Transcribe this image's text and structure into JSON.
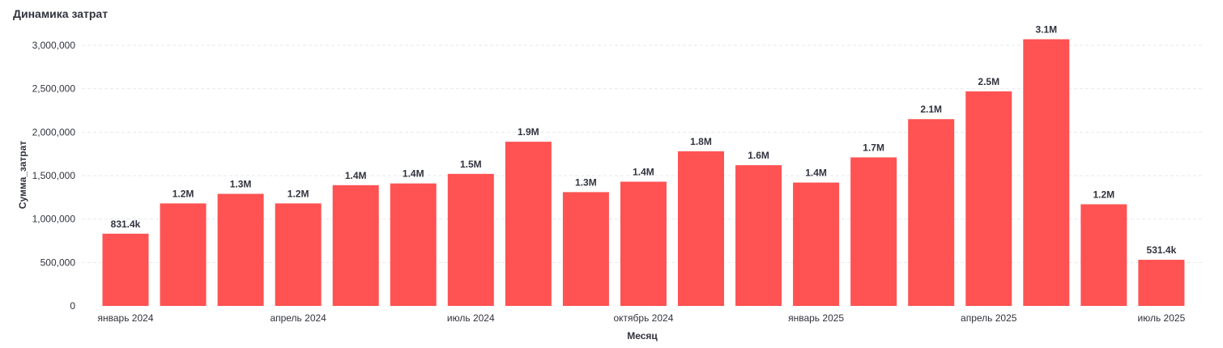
{
  "chart_data": {
    "type": "bar",
    "title": "Динамика затрат",
    "xlabel": "Месяц",
    "ylabel": "Сумма_затрат",
    "ylim": [
      0,
      3100000
    ],
    "yticks": [
      0,
      500000,
      1000000,
      1500000,
      2000000,
      2500000,
      3000000
    ],
    "ytick_labels": [
      "0",
      "500,000",
      "1,000,000",
      "1,500,000",
      "2,000,000",
      "2,500,000",
      "3,000,000"
    ],
    "grid": true,
    "bar_color": "#ff5252",
    "categories": [
      "2024-01",
      "2024-02",
      "2024-03",
      "2024-04",
      "2024-05",
      "2024-06",
      "2024-07",
      "2024-08",
      "2024-09",
      "2024-10",
      "2024-11",
      "2024-12",
      "2025-01",
      "2025-02",
      "2025-03",
      "2025-04",
      "2025-05",
      "2025-06",
      "2025-07"
    ],
    "values": [
      831400,
      1180000,
      1290000,
      1180000,
      1390000,
      1410000,
      1520000,
      1890000,
      1310000,
      1430000,
      1780000,
      1620000,
      1420000,
      1710000,
      2150000,
      2470000,
      3070000,
      1170000,
      531400
    ],
    "data_labels": [
      "831.4k",
      "1.2M",
      "1.3M",
      "1.2M",
      "1.4M",
      "1.4M",
      "1.5M",
      "1.9M",
      "1.3M",
      "1.4M",
      "1.8M",
      "1.6M",
      "1.4M",
      "1.7M",
      "2.1M",
      "2.5M",
      "3.1M",
      "1.2M",
      "531.4k"
    ],
    "xticks": [
      {
        "category": "2024-01",
        "label": "январь 2024"
      },
      {
        "category": "2024-04",
        "label": "апрель 2024"
      },
      {
        "category": "2024-07",
        "label": "июль 2024"
      },
      {
        "category": "2024-10",
        "label": "октябрь 2024"
      },
      {
        "category": "2025-01",
        "label": "январь 2025"
      },
      {
        "category": "2025-04",
        "label": "апрель 2025"
      },
      {
        "category": "2025-07",
        "label": "июль 2025"
      }
    ]
  }
}
